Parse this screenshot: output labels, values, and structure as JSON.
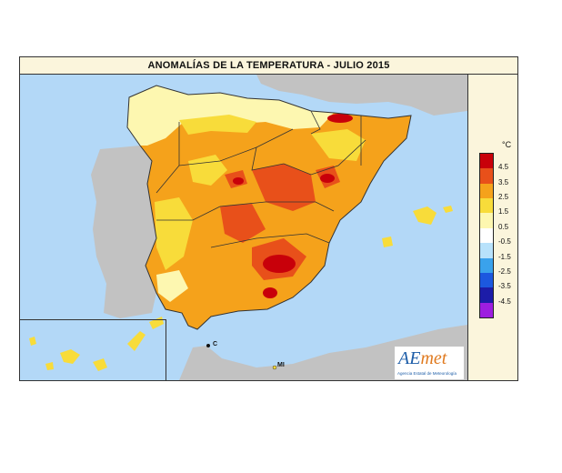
{
  "title": "ANOMALÍAS DE LA TEMPERATURA - JULIO  2015",
  "legend": {
    "unit": "°C",
    "labels": [
      "4.5",
      "3.5",
      "2.5",
      "1.5",
      "0.5",
      "-0.5",
      "-1.5",
      "-2.5",
      "-3.5",
      "-4.5"
    ],
    "colors": [
      "#c8000a",
      "#e8501a",
      "#f5a21b",
      "#f8dc3a",
      "#fdf7b0",
      "#ffffff",
      "#b8e2fb",
      "#3aa2ec",
      "#1c58df",
      "#1c1ca8",
      "#9d1ee0"
    ]
  },
  "places": {
    "ceuta": "C",
    "melilla": "MI"
  },
  "logo": {
    "prefix": "AE",
    "suffix": "met",
    "subtitle": "Agencia Estatal de Meteorología"
  },
  "colors": {
    "sea": "#b3d8f7",
    "land_foreign": "#c2c2c2",
    "frame": "#fbf5dc"
  }
}
